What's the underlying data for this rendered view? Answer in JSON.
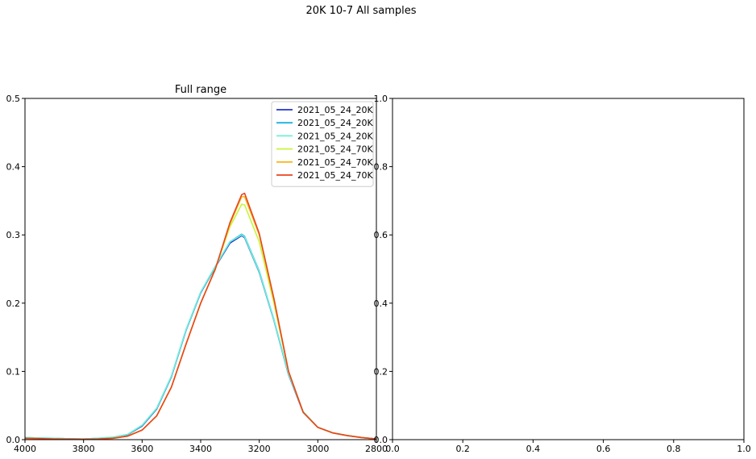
{
  "figure": {
    "suptitle": "20K 10-7 All samples"
  },
  "chart_data": [
    {
      "type": "line",
      "title": "Full range",
      "xlabel": "",
      "ylabel": "",
      "xlim": [
        4000,
        2800
      ],
      "ylim": [
        0,
        0.5
      ],
      "xticks": [
        "4000",
        "3800",
        "3600",
        "3400",
        "3200",
        "3000",
        "2800"
      ],
      "yticks": [
        "0.0",
        "0.1",
        "0.2",
        "0.3",
        "0.4",
        "0.5"
      ],
      "grid": false,
      "legend_position": "top-right",
      "x": [
        4000,
        3950,
        3900,
        3850,
        3800,
        3750,
        3700,
        3650,
        3600,
        3550,
        3500,
        3450,
        3400,
        3350,
        3300,
        3260,
        3250,
        3200,
        3150,
        3100,
        3050,
        3000,
        2950,
        2900,
        2850,
        2800
      ],
      "series": [
        {
          "name": "2021_05_24_20K",
          "color": "#2035cc",
          "values": [
            0.002,
            0.002,
            0.0015,
            0.001,
            0.0008,
            0.0015,
            0.003,
            0.007,
            0.02,
            0.045,
            0.092,
            0.16,
            0.215,
            0.253,
            0.288,
            0.299,
            0.296,
            0.245,
            0.175,
            0.095,
            0.04,
            0.018,
            0.01,
            0.006,
            0.003,
            0.001
          ]
        },
        {
          "name": "2021_05_24_20K",
          "color": "#18b2e0",
          "values": [
            0.003,
            0.0025,
            0.002,
            0.0012,
            0.001,
            0.002,
            0.0035,
            0.0075,
            0.021,
            0.046,
            0.093,
            0.161,
            0.216,
            0.254,
            0.29,
            0.301,
            0.298,
            0.247,
            0.176,
            0.096,
            0.041,
            0.018,
            0.01,
            0.006,
            0.003,
            0.001
          ]
        },
        {
          "name": "2021_05_24_20K",
          "color": "#6ef0d8",
          "values": [
            0.003,
            0.0025,
            0.002,
            0.0012,
            0.001,
            0.002,
            0.0035,
            0.0075,
            0.021,
            0.046,
            0.093,
            0.161,
            0.216,
            0.254,
            0.29,
            0.3,
            0.297,
            0.246,
            0.176,
            0.096,
            0.041,
            0.018,
            0.01,
            0.006,
            0.003,
            0.001
          ]
        },
        {
          "name": "2021_05_24_70K",
          "color": "#c6f53c",
          "values": [
            0.002,
            0.0015,
            0.001,
            0.0008,
            0.0006,
            0.001,
            0.002,
            0.005,
            0.014,
            0.035,
            0.077,
            0.14,
            0.2,
            0.25,
            0.312,
            0.345,
            0.344,
            0.29,
            0.2,
            0.1,
            0.04,
            0.018,
            0.01,
            0.006,
            0.003,
            0.001
          ]
        },
        {
          "name": "2021_05_24_70K",
          "color": "#f9b81e",
          "values": [
            0.002,
            0.0015,
            0.001,
            0.0008,
            0.0006,
            0.001,
            0.002,
            0.005,
            0.014,
            0.035,
            0.077,
            0.14,
            0.2,
            0.25,
            0.316,
            0.356,
            0.356,
            0.3,
            0.205,
            0.1,
            0.04,
            0.018,
            0.01,
            0.006,
            0.003,
            0.001
          ]
        },
        {
          "name": "2021_05_24_70K",
          "color": "#e8451e",
          "values": [
            0.002,
            0.0015,
            0.001,
            0.0008,
            0.0006,
            0.001,
            0.002,
            0.005,
            0.014,
            0.035,
            0.077,
            0.14,
            0.2,
            0.25,
            0.318,
            0.359,
            0.361,
            0.302,
            0.207,
            0.1,
            0.04,
            0.018,
            0.01,
            0.006,
            0.003,
            0.001
          ]
        }
      ]
    },
    {
      "type": "line",
      "title": "",
      "xlabel": "",
      "ylabel": "",
      "xlim": [
        0,
        1
      ],
      "ylim": [
        0,
        1
      ],
      "xticks": [
        "0.0",
        "0.2",
        "0.4",
        "0.6",
        "0.8",
        "1.0"
      ],
      "yticks": [
        "0.0",
        "0.2",
        "0.4",
        "0.6",
        "0.8",
        "1.0"
      ],
      "grid": false,
      "series": []
    }
  ]
}
